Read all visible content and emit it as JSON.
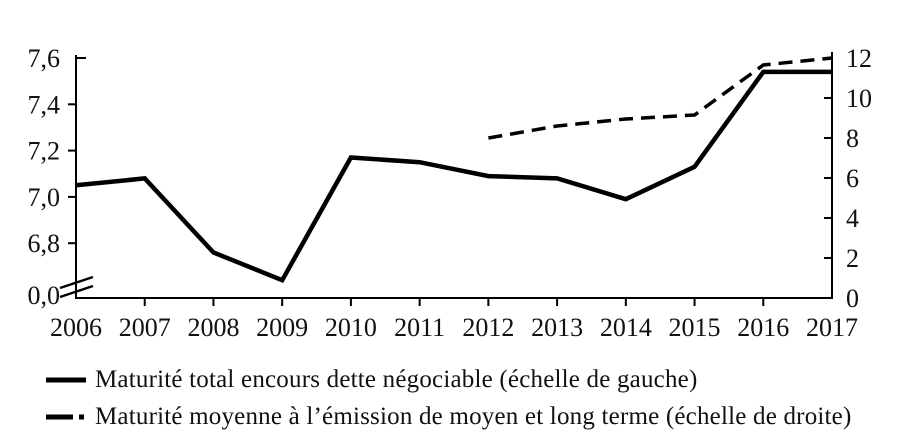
{
  "figure": {
    "background": "#ffffff",
    "line_color": "#000000",
    "text_color": "#111111"
  },
  "chart_data": {
    "type": "line",
    "title": "",
    "grid": false,
    "legend_position": "bottom-left",
    "x": [
      2006,
      2007,
      2008,
      2009,
      2010,
      2011,
      2012,
      2013,
      2014,
      2015,
      2016,
      2017
    ],
    "x_axis": {
      "tick_labels": [
        "2006",
        "2007",
        "2008",
        "2009",
        "2010",
        "2011",
        "2012",
        "2013",
        "2014",
        "2015",
        "2016",
        "2017"
      ]
    },
    "left_axis": {
      "tick_labels": [
        "7,6",
        "7,4",
        "7,2",
        "7,0",
        "6,8",
        "0,0"
      ],
      "tick_values": [
        7.6,
        7.4,
        7.2,
        7.0,
        6.8,
        0.0
      ],
      "axis_break": true,
      "range_shown": [
        6.6,
        7.6
      ]
    },
    "right_axis": {
      "tick_labels": [
        "12",
        "10",
        "8",
        "6",
        "4",
        "2",
        "0"
      ],
      "tick_values": [
        12,
        10,
        8,
        6,
        4,
        2,
        0
      ],
      "range": [
        0,
        12
      ]
    },
    "series": [
      {
        "name": "Maturité total encours dette négociable (échelle de gauche)",
        "axis": "left",
        "line_style": "solid",
        "color": "#000000",
        "values": [
          7.05,
          7.08,
          6.76,
          6.64,
          7.17,
          7.15,
          7.09,
          7.08,
          6.99,
          7.13,
          7.54,
          7.54
        ]
      },
      {
        "name": "Maturité moyenne à l’émission de moyen et long terme (échelle de droite)",
        "axis": "right",
        "line_style": "dashed",
        "color": "#000000",
        "values": [
          null,
          null,
          null,
          null,
          null,
          null,
          8.0,
          8.6,
          8.95,
          9.15,
          11.65,
          12.0
        ]
      }
    ]
  },
  "legend": {
    "items": [
      {
        "swatch": "solid-line",
        "label": "Maturité total encours dette négociable (échelle de gauche)"
      },
      {
        "swatch": "dash-dot-line",
        "label": "Maturité moyenne à l’émission de moyen et long terme (échelle de droite)"
      }
    ]
  }
}
